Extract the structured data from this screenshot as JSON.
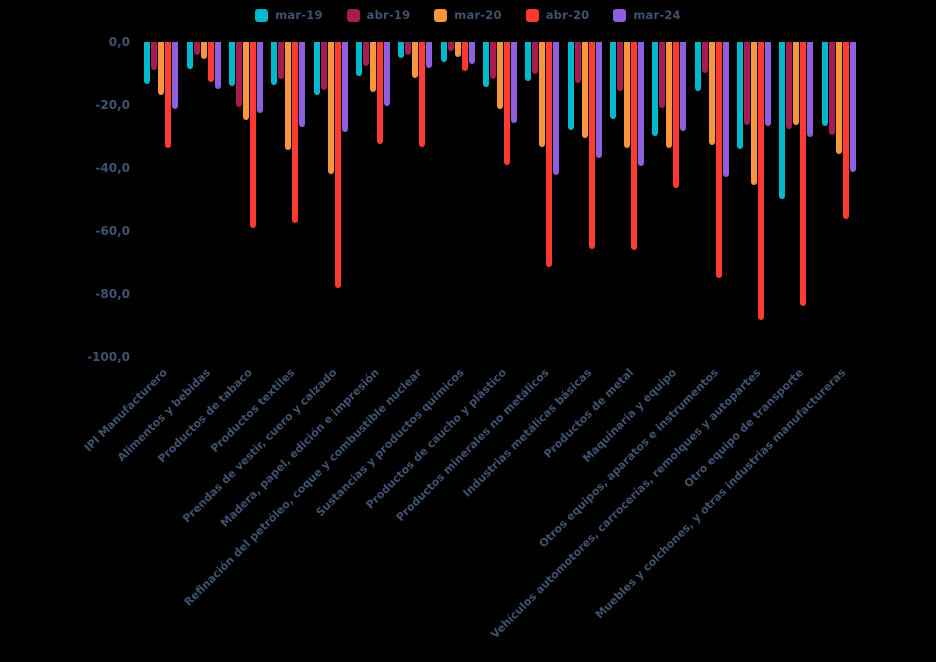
{
  "page": {
    "background": "#000000",
    "text_color": "#3e536f"
  },
  "chart_data": {
    "type": "bar",
    "title": "",
    "legend_position": "top-center",
    "grid": false,
    "decimal_separator": ",",
    "categories": [
      "IPI Manufacturero",
      "Alimentos y bebidas",
      "Productos de tabaco",
      "Productos textiles",
      "Prendas de vestir, cuero y calzado",
      "Madera, papel, edición e impresión",
      "Refinación del petróleo, coque y combustible nuclear",
      "Sustancias y productos químicos",
      "Productos de caucho y plástico",
      "Productos minerales no metálicos",
      "Industrias metálicas básicas",
      "Productos de metal",
      "Maquinaria y equipo",
      "Otros equipos, aparatos e instrumentos",
      "Vehículos automotores, carrocerías, remolques y autopartes",
      "Otro equipo de transporte",
      "Muebles y colchones, y otras industrias manufactureras"
    ],
    "series": [
      {
        "name": "mar-19",
        "color": "#00b9cc",
        "values": [
          -13.4,
          -8.7,
          -14.0,
          -13.5,
          -16.8,
          -10.9,
          -5.1,
          -6.2,
          -14.3,
          -12.4,
          -27.9,
          -24.6,
          -29.8,
          -15.4,
          -33.9,
          -49.7,
          -26.8
        ]
      },
      {
        "name": "abr-19",
        "color": "#a61b52",
        "values": [
          -8.8,
          -4.0,
          -20.5,
          -11.8,
          -15.2,
          -7.6,
          -4.2,
          -2.8,
          -11.9,
          -10.2,
          -13.1,
          -15.7,
          -21.0,
          -9.8,
          -26.4,
          -27.5,
          -29.5
        ]
      },
      {
        "name": "mar-20",
        "color": "#f8953f",
        "values": [
          -16.8,
          -5.5,
          -24.8,
          -34.2,
          -41.9,
          -15.8,
          -11.5,
          -4.7,
          -21.4,
          -33.4,
          -30.6,
          -33.8,
          -33.7,
          -32.6,
          -45.3,
          -26.3,
          -35.7
        ]
      },
      {
        "name": "abr-20",
        "color": "#ff3a33",
        "values": [
          -33.5,
          -12.8,
          -59.2,
          -57.4,
          -78.1,
          -32.5,
          -33.2,
          -9.3,
          -39.0,
          -71.3,
          -65.7,
          -65.9,
          -46.2,
          -74.8,
          -88.4,
          -83.9,
          -56.3
        ]
      },
      {
        "name": "mar-24",
        "color": "#8f5fe0",
        "values": [
          -21.2,
          -14.9,
          -22.4,
          -26.9,
          -28.7,
          -20.3,
          -8.4,
          -7.1,
          -25.8,
          -42.1,
          -36.8,
          -39.5,
          -28.1,
          -43.0,
          -26.7,
          -30.2,
          -41.2
        ]
      }
    ],
    "y_axis": {
      "min": -100,
      "max": 0,
      "ticks": [
        {
          "value": 0,
          "label": "0,0"
        },
        {
          "value": -20,
          "label": "-20,0"
        },
        {
          "value": -40,
          "label": "-40,0"
        },
        {
          "value": -60,
          "label": "-60,0"
        },
        {
          "value": -80,
          "label": "-80,0"
        },
        {
          "value": -100,
          "label": "-100,0"
        }
      ]
    }
  }
}
